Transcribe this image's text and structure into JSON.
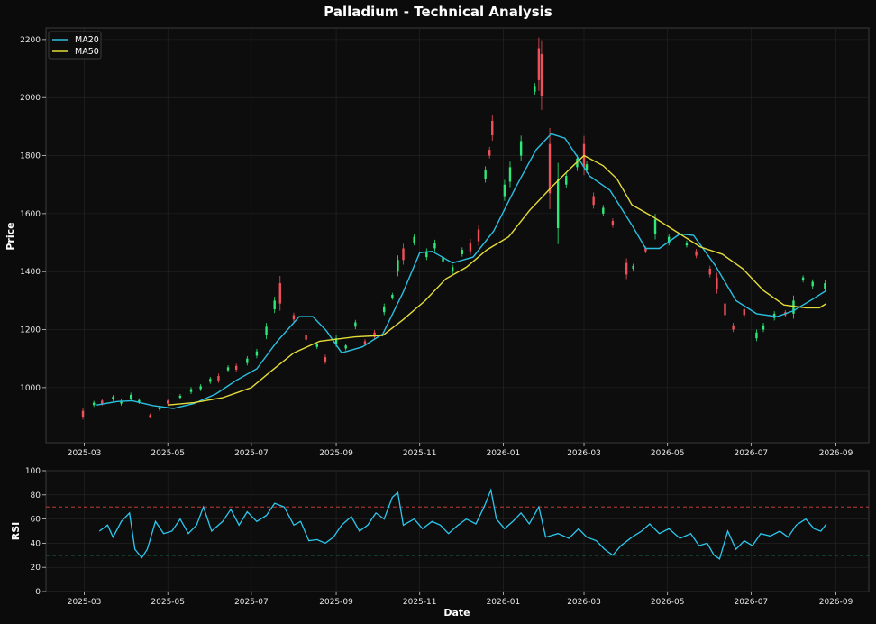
{
  "title": "Palladium - Technical Analysis",
  "colors": {
    "background": "#0b0b0b",
    "up": "#2ee879",
    "down": "#f0505a",
    "ma20": "#2bbfe0",
    "ma50": "#e3dc3a",
    "rsi": "#2bc8ef",
    "overbought": "#e0403c",
    "oversold": "#21c087"
  },
  "chart_data": [
    {
      "type": "candlestick",
      "ylabel": "Price",
      "xlabel": "",
      "ylim": [
        810,
        2240
      ],
      "xlim": [
        "2025-02-01",
        "2026-09-25"
      ],
      "grid": true,
      "legend_position": "top-left",
      "yticks": [
        1000,
        1200,
        1400,
        1600,
        1800,
        2000,
        2200
      ],
      "xticks": [
        "2025-03",
        "2025-05",
        "2025-07",
        "2025-09",
        "2025-11",
        "2026-01",
        "2026-03",
        "2026-05",
        "2026-07",
        "2026-09"
      ],
      "series": [
        {
          "name": "MA20",
          "points": [
            [
              "2025-03-10",
              940
            ],
            [
              "2025-03-25",
              952
            ],
            [
              "2025-04-05",
              955
            ],
            [
              "2025-04-20",
              938
            ],
            [
              "2025-05-05",
              928
            ],
            [
              "2025-05-20",
              945
            ],
            [
              "2025-06-05",
              978
            ],
            [
              "2025-06-20",
              1025
            ],
            [
              "2025-07-05",
              1065
            ],
            [
              "2025-07-20",
              1160
            ],
            [
              "2025-08-05",
              1245
            ],
            [
              "2025-08-15",
              1245
            ],
            [
              "2025-08-25",
              1195
            ],
            [
              "2025-09-05",
              1120
            ],
            [
              "2025-09-20",
              1140
            ],
            [
              "2025-10-05",
              1185
            ],
            [
              "2025-10-20",
              1330
            ],
            [
              "2025-11-01",
              1465
            ],
            [
              "2025-11-10",
              1470
            ],
            [
              "2025-11-25",
              1430
            ],
            [
              "2025-12-10",
              1450
            ],
            [
              "2025-12-25",
              1540
            ],
            [
              "2026-01-10",
              1690
            ],
            [
              "2026-01-25",
              1820
            ],
            [
              "2026-02-05",
              1875
            ],
            [
              "2026-02-15",
              1860
            ],
            [
              "2026-02-25",
              1790
            ],
            [
              "2026-03-05",
              1730
            ],
            [
              "2026-03-20",
              1680
            ],
            [
              "2026-04-05",
              1560
            ],
            [
              "2026-04-15",
              1480
            ],
            [
              "2026-04-25",
              1480
            ],
            [
              "2026-05-10",
              1530
            ],
            [
              "2026-05-20",
              1525
            ],
            [
              "2026-06-05",
              1420
            ],
            [
              "2026-06-20",
              1300
            ],
            [
              "2026-07-05",
              1255
            ],
            [
              "2026-07-20",
              1245
            ],
            [
              "2026-08-01",
              1265
            ],
            [
              "2026-08-15",
              1305
            ],
            [
              "2026-08-25",
              1335
            ]
          ]
        },
        {
          "name": "MA50",
          "points": [
            [
              "2025-05-01",
              940
            ],
            [
              "2025-05-20",
              948
            ],
            [
              "2025-06-10",
              965
            ],
            [
              "2025-07-01",
              1000
            ],
            [
              "2025-07-15",
              1055
            ],
            [
              "2025-08-01",
              1120
            ],
            [
              "2025-08-20",
              1160
            ],
            [
              "2025-09-15",
              1175
            ],
            [
              "2025-10-05",
              1180
            ],
            [
              "2025-10-20",
              1235
            ],
            [
              "2025-11-05",
              1300
            ],
            [
              "2025-11-20",
              1375
            ],
            [
              "2025-12-05",
              1415
            ],
            [
              "2025-12-20",
              1475
            ],
            [
              "2026-01-05",
              1520
            ],
            [
              "2026-01-20",
              1610
            ],
            [
              "2026-02-05",
              1690
            ],
            [
              "2026-02-20",
              1760
            ],
            [
              "2026-03-01",
              1800
            ],
            [
              "2026-03-15",
              1765
            ],
            [
              "2026-03-25",
              1720
            ],
            [
              "2026-04-05",
              1630
            ],
            [
              "2026-04-20",
              1590
            ],
            [
              "2026-05-10",
              1530
            ],
            [
              "2026-05-25",
              1485
            ],
            [
              "2026-06-10",
              1460
            ],
            [
              "2026-06-25",
              1410
            ],
            [
              "2026-07-10",
              1335
            ],
            [
              "2026-07-25",
              1285
            ],
            [
              "2026-08-10",
              1275
            ],
            [
              "2026-08-20",
              1275
            ],
            [
              "2026-08-25",
              1290
            ]
          ]
        }
      ],
      "candles": [
        [
          "2025-02-28",
          920,
          900
        ],
        [
          "2025-03-08",
          940,
          948
        ],
        [
          "2025-03-14",
          955,
          945
        ],
        [
          "2025-03-22",
          960,
          968
        ],
        [
          "2025-03-28",
          945,
          955
        ],
        [
          "2025-04-04",
          962,
          975
        ],
        [
          "2025-04-10",
          950,
          957
        ],
        [
          "2025-04-18",
          905,
          900
        ],
        [
          "2025-04-25",
          925,
          932
        ],
        [
          "2025-05-01",
          955,
          945
        ],
        [
          "2025-05-10",
          965,
          972
        ],
        [
          "2025-05-18",
          985,
          995
        ],
        [
          "2025-05-25",
          995,
          1005
        ],
        [
          "2025-06-01",
          1020,
          1030
        ],
        [
          "2025-06-07",
          1040,
          1025
        ],
        [
          "2025-06-14",
          1060,
          1070
        ],
        [
          "2025-06-20",
          1075,
          1062
        ],
        [
          "2025-06-28",
          1085,
          1100
        ],
        [
          "2025-07-05",
          1110,
          1125
        ],
        [
          "2025-07-12",
          1180,
          1210
        ],
        [
          "2025-07-18",
          1270,
          1300
        ],
        [
          "2025-07-22",
          1360,
          1290
        ],
        [
          "2025-08-01",
          1250,
          1235
        ],
        [
          "2025-08-10",
          1180,
          1165
        ],
        [
          "2025-08-18",
          1140,
          1150
        ],
        [
          "2025-08-24",
          1105,
          1090
        ],
        [
          "2025-09-01",
          1150,
          1170
        ],
        [
          "2025-09-08",
          1135,
          1145
        ],
        [
          "2025-09-15",
          1210,
          1225
        ],
        [
          "2025-09-22",
          1160,
          1150
        ],
        [
          "2025-09-29",
          1190,
          1175
        ],
        [
          "2025-10-06",
          1260,
          1280
        ],
        [
          "2025-10-12",
          1310,
          1320
        ],
        [
          "2025-10-16",
          1400,
          1440
        ],
        [
          "2025-10-20",
          1480,
          1440
        ],
        [
          "2025-10-28",
          1500,
          1520
        ],
        [
          "2025-11-06",
          1450,
          1470
        ],
        [
          "2025-11-12",
          1480,
          1500
        ],
        [
          "2025-11-18",
          1435,
          1450
        ],
        [
          "2025-11-25",
          1400,
          1415
        ],
        [
          "2025-12-02",
          1460,
          1475
        ],
        [
          "2025-12-08",
          1500,
          1470
        ],
        [
          "2025-12-14",
          1545,
          1505
        ],
        [
          "2025-12-19",
          1720,
          1750
        ],
        [
          "2025-12-22",
          1820,
          1800
        ],
        [
          "2025-12-24",
          1920,
          1870
        ],
        [
          "2026-01-02",
          1660,
          1700
        ],
        [
          "2026-01-06",
          1710,
          1760
        ],
        [
          "2026-01-14",
          1800,
          1850
        ],
        [
          "2026-01-24",
          2020,
          2040
        ],
        [
          "2026-01-27",
          2170,
          2060
        ],
        [
          "2026-01-29",
          2150,
          2005
        ],
        [
          "2026-02-04",
          1840,
          1670
        ],
        [
          "2026-02-10",
          1550,
          1720
        ],
        [
          "2026-02-16",
          1700,
          1730
        ],
        [
          "2026-02-24",
          1760,
          1790
        ],
        [
          "2026-03-01",
          1840,
          1760
        ],
        [
          "2026-03-03",
          1750,
          1770
        ],
        [
          "2026-03-08",
          1660,
          1630
        ],
        [
          "2026-03-15",
          1600,
          1620
        ],
        [
          "2026-03-22",
          1575,
          1560
        ],
        [
          "2026-04-01",
          1430,
          1390
        ],
        [
          "2026-04-06",
          1410,
          1420
        ],
        [
          "2026-04-15",
          1480,
          1470
        ],
        [
          "2026-04-22",
          1530,
          1580
        ],
        [
          "2026-05-02",
          1500,
          1520
        ],
        [
          "2026-05-15",
          1490,
          1500
        ],
        [
          "2026-05-22",
          1470,
          1455
        ],
        [
          "2026-06-01",
          1410,
          1390
        ],
        [
          "2026-06-06",
          1380,
          1340
        ],
        [
          "2026-06-12",
          1290,
          1250
        ],
        [
          "2026-06-18",
          1215,
          1200
        ],
        [
          "2026-06-26",
          1270,
          1250
        ],
        [
          "2026-07-05",
          1170,
          1190
        ],
        [
          "2026-07-10",
          1200,
          1215
        ],
        [
          "2026-07-18",
          1240,
          1255
        ],
        [
          "2026-07-26",
          1260,
          1250
        ],
        [
          "2026-08-01",
          1255,
          1300
        ],
        [
          "2026-08-08",
          1370,
          1380
        ],
        [
          "2026-08-15",
          1350,
          1365
        ],
        [
          "2026-08-24",
          1340,
          1360
        ]
      ]
    },
    {
      "type": "line",
      "ylabel": "RSI",
      "xlabel": "Date",
      "ylim": [
        0,
        100
      ],
      "xlim": [
        "2025-02-01",
        "2026-09-25"
      ],
      "grid": true,
      "yticks": [
        0,
        20,
        40,
        60,
        80,
        100
      ],
      "xticks": [
        "2025-03",
        "2025-05",
        "2025-07",
        "2025-09",
        "2025-11",
        "2026-01",
        "2026-03",
        "2026-05",
        "2026-07",
        "2026-09"
      ],
      "reference_lines": [
        70,
        30
      ],
      "series": [
        {
          "name": "",
          "points": [
            [
              "2025-03-12",
              50
            ],
            [
              "2025-03-18",
              55
            ],
            [
              "2025-03-22",
              45
            ],
            [
              "2025-03-28",
              58
            ],
            [
              "2025-04-03",
              65
            ],
            [
              "2025-04-07",
              35
            ],
            [
              "2025-04-12",
              28
            ],
            [
              "2025-04-16",
              35
            ],
            [
              "2025-04-22",
              58
            ],
            [
              "2025-04-28",
              48
            ],
            [
              "2025-05-04",
              50
            ],
            [
              "2025-05-10",
              60
            ],
            [
              "2025-05-16",
              48
            ],
            [
              "2025-05-22",
              55
            ],
            [
              "2025-05-27",
              70
            ],
            [
              "2025-06-02",
              50
            ],
            [
              "2025-06-10",
              58
            ],
            [
              "2025-06-16",
              68
            ],
            [
              "2025-06-22",
              55
            ],
            [
              "2025-06-28",
              66
            ],
            [
              "2025-07-05",
              58
            ],
            [
              "2025-07-12",
              63
            ],
            [
              "2025-07-18",
              73
            ],
            [
              "2025-07-25",
              70
            ],
            [
              "2025-08-01",
              55
            ],
            [
              "2025-08-06",
              58
            ],
            [
              "2025-08-12",
              42
            ],
            [
              "2025-08-18",
              43
            ],
            [
              "2025-08-24",
              40
            ],
            [
              "2025-08-30",
              45
            ],
            [
              "2025-09-05",
              55
            ],
            [
              "2025-09-12",
              62
            ],
            [
              "2025-09-18",
              50
            ],
            [
              "2025-09-24",
              55
            ],
            [
              "2025-09-30",
              65
            ],
            [
              "2025-10-06",
              60
            ],
            [
              "2025-10-12",
              78
            ],
            [
              "2025-10-16",
              82
            ],
            [
              "2025-10-20",
              55
            ],
            [
              "2025-10-28",
              60
            ],
            [
              "2025-11-03",
              52
            ],
            [
              "2025-11-10",
              58
            ],
            [
              "2025-11-16",
              55
            ],
            [
              "2025-11-22",
              48
            ],
            [
              "2025-11-29",
              55
            ],
            [
              "2025-12-05",
              60
            ],
            [
              "2025-12-12",
              56
            ],
            [
              "2025-12-18",
              70
            ],
            [
              "2025-12-23",
              84
            ],
            [
              "2025-12-27",
              60
            ],
            [
              "2026-01-02",
              52
            ],
            [
              "2026-01-08",
              58
            ],
            [
              "2026-01-14",
              65
            ],
            [
              "2026-01-20",
              56
            ],
            [
              "2026-01-27",
              70
            ],
            [
              "2026-02-01",
              45
            ],
            [
              "2026-02-10",
              48
            ],
            [
              "2026-02-18",
              44
            ],
            [
              "2026-02-25",
              52
            ],
            [
              "2026-03-03",
              45
            ],
            [
              "2026-03-10",
              42
            ],
            [
              "2026-03-16",
              35
            ],
            [
              "2026-03-22",
              30
            ],
            [
              "2026-03-28",
              38
            ],
            [
              "2026-04-05",
              45
            ],
            [
              "2026-04-12",
              50
            ],
            [
              "2026-04-18",
              56
            ],
            [
              "2026-04-25",
              48
            ],
            [
              "2026-05-02",
              52
            ],
            [
              "2026-05-10",
              44
            ],
            [
              "2026-05-18",
              48
            ],
            [
              "2026-05-24",
              38
            ],
            [
              "2026-05-30",
              40
            ],
            [
              "2026-06-04",
              30
            ],
            [
              "2026-06-08",
              27
            ],
            [
              "2026-06-14",
              50
            ],
            [
              "2026-06-20",
              35
            ],
            [
              "2026-06-26",
              42
            ],
            [
              "2026-07-02",
              38
            ],
            [
              "2026-07-08",
              48
            ],
            [
              "2026-07-15",
              46
            ],
            [
              "2026-07-22",
              50
            ],
            [
              "2026-07-28",
              45
            ],
            [
              "2026-08-03",
              55
            ],
            [
              "2026-08-10",
              60
            ],
            [
              "2026-08-16",
              52
            ],
            [
              "2026-08-21",
              50
            ],
            [
              "2026-08-25",
              56
            ]
          ]
        }
      ]
    }
  ]
}
